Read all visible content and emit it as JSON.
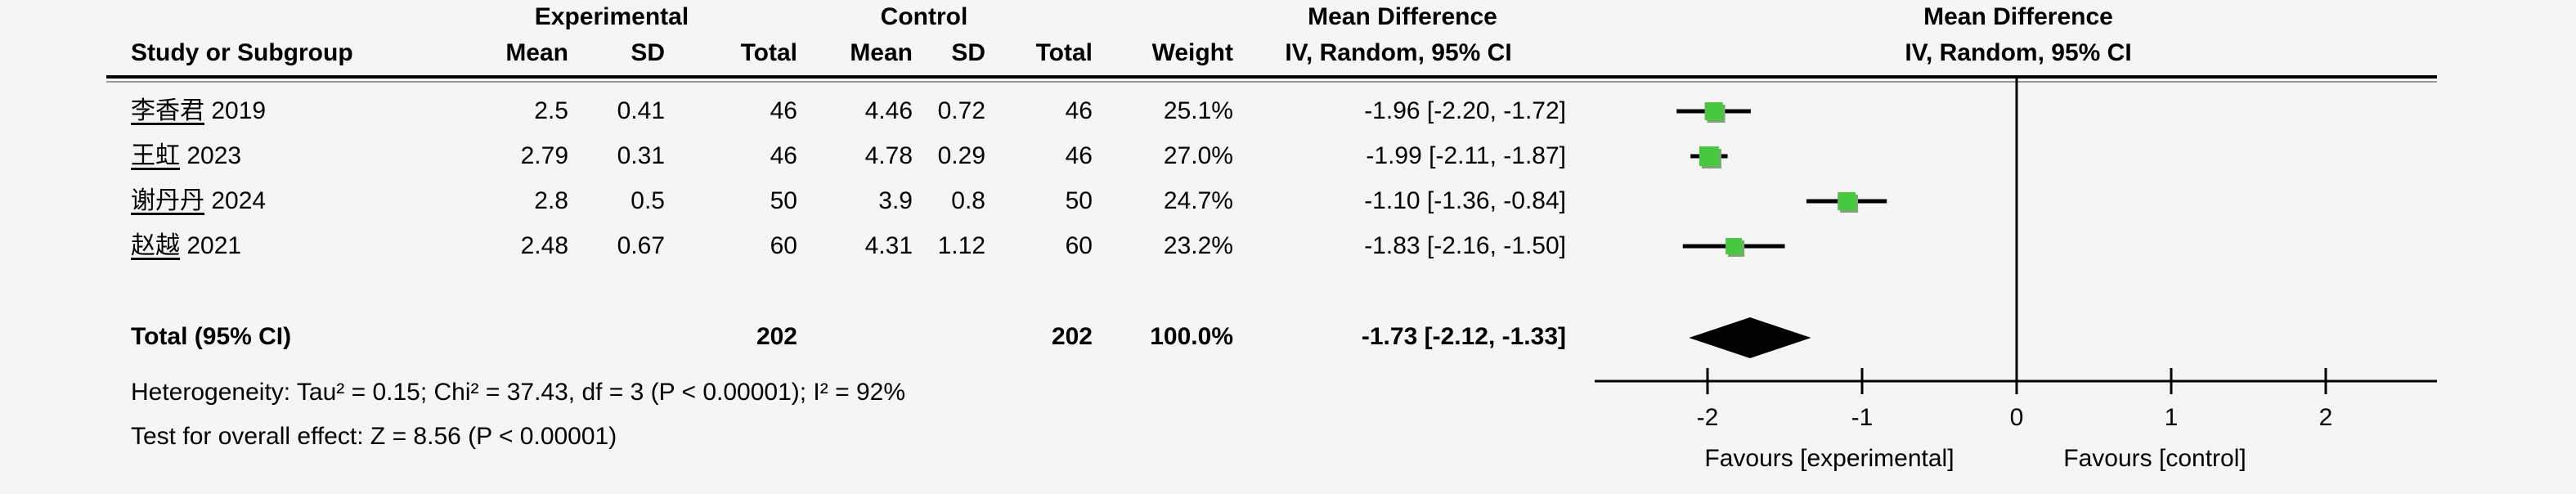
{
  "table": {
    "group_headers": {
      "experimental": "Experimental",
      "control": "Control",
      "mean_difference_left": "Mean Difference",
      "mean_difference_right": "Mean Difference"
    },
    "col_headers": {
      "study": "Study or Subgroup",
      "mean_e": "Mean",
      "sd_e": "SD",
      "total_e": "Total",
      "mean_c": "Mean",
      "sd_c": "SD",
      "total_c": "Total",
      "weight": "Weight",
      "ci": "IV, Random, 95% CI",
      "ci_right": "IV, Random, 95% CI"
    },
    "rows": [
      {
        "name_cjk": "李香君",
        "year": "2019",
        "mean_e": "2.5",
        "sd_e": "0.41",
        "total_e": "46",
        "mean_c": "4.46",
        "sd_c": "0.72",
        "total_c": "46",
        "weight": "25.1%",
        "ci": "-1.96 [-2.20, -1.72]"
      },
      {
        "name_cjk": "王虹",
        "year": "2023",
        "mean_e": "2.79",
        "sd_e": "0.31",
        "total_e": "46",
        "mean_c": "4.78",
        "sd_c": "0.29",
        "total_c": "46",
        "weight": "27.0%",
        "ci": "-1.99 [-2.11, -1.87]"
      },
      {
        "name_cjk": "谢丹丹",
        "year": "2024",
        "mean_e": "2.8",
        "sd_e": "0.5",
        "total_e": "50",
        "mean_c": "3.9",
        "sd_c": "0.8",
        "total_c": "50",
        "weight": "24.7%",
        "ci": "-1.10 [-1.36, -0.84]"
      },
      {
        "name_cjk": "赵越",
        "year": "2021",
        "mean_e": "2.48",
        "sd_e": "0.67",
        "total_e": "60",
        "mean_c": "4.31",
        "sd_c": "1.12",
        "total_c": "60",
        "weight": "23.2%",
        "ci": "-1.83 [-2.16, -1.50]"
      }
    ],
    "total_row": {
      "label": "Total (95% CI)",
      "total_e": "202",
      "total_c": "202",
      "weight": "100.0%",
      "ci": "-1.73 [-2.12, -1.33]"
    },
    "heterogeneity": "Heterogeneity: Tau² = 0.15; Chi² = 37.43, df = 3 (P < 0.00001); I² = 92%",
    "overall_effect": "Test for overall effect: Z = 8.56 (P < 0.00001)"
  },
  "chart_data": {
    "type": "scatter",
    "subtype": "forest-plot",
    "effect_measure": "Mean Difference, IV, Random, 95% CI",
    "studies": [
      {
        "name": "李香君 2019",
        "md": -1.96,
        "ci_low": -2.2,
        "ci_high": -1.72,
        "weight": 25.1
      },
      {
        "name": "王虹 2023",
        "md": -1.99,
        "ci_low": -2.11,
        "ci_high": -1.87,
        "weight": 27.0
      },
      {
        "name": "谢丹丹 2024",
        "md": -1.1,
        "ci_low": -1.36,
        "ci_high": -0.84,
        "weight": 24.7
      },
      {
        "name": "赵越 2021",
        "md": -1.83,
        "ci_low": -2.16,
        "ci_high": -1.5,
        "weight": 23.2
      }
    ],
    "total": {
      "md": -1.73,
      "ci_low": -2.12,
      "ci_high": -1.33,
      "weight": 100.0
    },
    "x_ticks": [
      -2,
      -1,
      0,
      1,
      2
    ],
    "xlim": [
      -2.73,
      2.72
    ],
    "zero_line": 0,
    "favours_left": "Favours [experimental]",
    "favours_right": "Favours [control]",
    "marker_color": "#47c83e",
    "marker_shade": "#7da577",
    "line_color": "#000000",
    "grid": false
  }
}
